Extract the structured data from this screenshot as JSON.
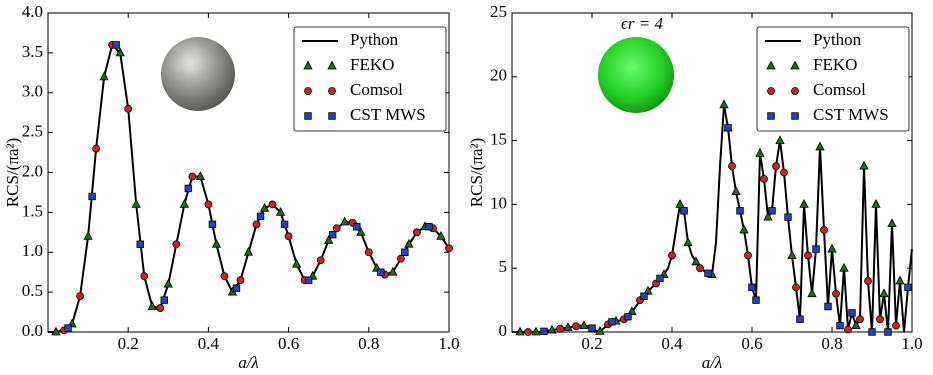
{
  "chart_data": [
    {
      "type": "line",
      "xlabel": "a/λ",
      "ylabel": "RCS/(πa²)",
      "xlim": [
        0,
        1.0
      ],
      "ylim": [
        0,
        4.0
      ],
      "xticks": [
        0.2,
        0.4,
        0.6,
        0.8,
        {
          "value": 1.0,
          "label": "1.0"
        }
      ],
      "yticks": [
        {
          "value": 0,
          "label": "0.0"
        },
        {
          "value": 0.5,
          "label": "0.5"
        },
        {
          "value": 1.0,
          "label": "1.0"
        },
        {
          "value": 1.5,
          "label": "1.5"
        },
        {
          "value": 2.0,
          "label": "2.0"
        },
        {
          "value": 2.5,
          "label": "2.5"
        },
        {
          "value": 3.0,
          "label": "3.0"
        },
        {
          "value": 3.5,
          "label": "3.5"
        },
        {
          "value": 4.0,
          "label": "4.0"
        }
      ],
      "legend": "upper right",
      "series": [
        {
          "name": "Python",
          "color": "#000000",
          "marker": "line",
          "x": [
            0,
            0.02,
            0.04,
            0.06,
            0.08,
            0.1,
            0.12,
            0.14,
            0.16,
            0.18,
            0.2,
            0.22,
            0.24,
            0.26,
            0.28,
            0.3,
            0.32,
            0.34,
            0.36,
            0.38,
            0.4,
            0.42,
            0.44,
            0.46,
            0.48,
            0.5,
            0.52,
            0.54,
            0.56,
            0.58,
            0.6,
            0.62,
            0.64,
            0.66,
            0.68,
            0.7,
            0.72,
            0.74,
            0.76,
            0.78,
            0.8,
            0.82,
            0.84,
            0.86,
            0.88,
            0.9,
            0.92,
            0.94,
            0.96,
            0.98,
            1.0
          ],
          "values": [
            0,
            0,
            0.02,
            0.1,
            0.45,
            1.2,
            2.3,
            3.2,
            3.6,
            3.5,
            2.8,
            1.6,
            0.7,
            0.32,
            0.3,
            0.6,
            1.1,
            1.6,
            1.95,
            1.95,
            1.6,
            1.1,
            0.7,
            0.5,
            0.65,
            1.0,
            1.35,
            1.55,
            1.6,
            1.5,
            1.2,
            0.85,
            0.65,
            0.7,
            0.9,
            1.15,
            1.3,
            1.38,
            1.37,
            1.25,
            1.0,
            0.8,
            0.72,
            0.75,
            0.92,
            1.1,
            1.25,
            1.32,
            1.3,
            1.2,
            1.05
          ]
        },
        {
          "name": "FEKO",
          "color": "#1e6b1e",
          "marker": "triangle",
          "x": [
            0.02,
            0.06,
            0.1,
            0.14,
            0.18,
            0.22,
            0.26,
            0.3,
            0.34,
            0.38,
            0.42,
            0.46,
            0.5,
            0.54,
            0.58,
            0.62,
            0.66,
            0.7,
            0.74,
            0.78,
            0.82,
            0.86,
            0.9,
            0.94,
            0.98
          ],
          "values": [
            0,
            0.1,
            1.2,
            3.2,
            3.5,
            1.6,
            0.32,
            0.6,
            1.6,
            1.95,
            1.1,
            0.5,
            1.0,
            1.55,
            1.5,
            0.85,
            0.7,
            1.15,
            1.38,
            1.25,
            0.8,
            0.75,
            1.1,
            1.32,
            1.2
          ]
        },
        {
          "name": "Comsol",
          "color": "#e41a1c",
          "marker": "circle",
          "x": [
            0.04,
            0.08,
            0.12,
            0.16,
            0.2,
            0.24,
            0.28,
            0.32,
            0.36,
            0.4,
            0.44,
            0.48,
            0.52,
            0.56,
            0.6,
            0.64,
            0.68,
            0.72,
            0.76,
            0.8,
            0.84,
            0.88,
            0.92,
            0.96,
            1.0
          ],
          "values": [
            0.02,
            0.45,
            2.3,
            3.6,
            2.8,
            0.7,
            0.3,
            1.1,
            1.95,
            1.6,
            0.7,
            0.65,
            1.35,
            1.6,
            1.2,
            0.65,
            0.9,
            1.3,
            1.37,
            1.0,
            0.72,
            0.92,
            1.25,
            1.3,
            1.05
          ]
        },
        {
          "name": "CST MWS",
          "color": "#1f3fd6",
          "marker": "square",
          "x": [
            0.05,
            0.11,
            0.17,
            0.23,
            0.29,
            0.35,
            0.41,
            0.47,
            0.53,
            0.59,
            0.65,
            0.71,
            0.77,
            0.83,
            0.89,
            0.95
          ],
          "values": [
            0.05,
            1.7,
            3.6,
            1.1,
            0.4,
            1.8,
            1.35,
            0.55,
            1.45,
            1.35,
            0.65,
            1.22,
            1.32,
            0.75,
            1.0,
            1.32
          ]
        }
      ]
    },
    {
      "type": "line",
      "xlabel": "a/λ",
      "ylabel": "RCS/(πa²)",
      "annotation": "ϵr = 4",
      "xlim": [
        0,
        1.0
      ],
      "ylim": [
        0,
        25
      ],
      "xticks": [
        0.2,
        0.4,
        0.6,
        0.8,
        {
          "value": 1.0,
          "label": "1.0"
        }
      ],
      "yticks": [
        0,
        5,
        10,
        15,
        20,
        25
      ],
      "legend": "upper right",
      "series": [
        {
          "name": "Python",
          "color": "#000000",
          "marker": "line",
          "x": [
            0,
            0.01,
            0.02,
            0.03,
            0.04,
            0.05,
            0.06,
            0.07,
            0.08,
            0.09,
            0.1,
            0.11,
            0.12,
            0.13,
            0.14,
            0.15,
            0.16,
            0.17,
            0.18,
            0.19,
            0.2,
            0.21,
            0.22,
            0.23,
            0.24,
            0.25,
            0.26,
            0.27,
            0.28,
            0.29,
            0.3,
            0.31,
            0.32,
            0.33,
            0.34,
            0.35,
            0.36,
            0.37,
            0.38,
            0.39,
            0.4,
            0.41,
            0.42,
            0.43,
            0.44,
            0.45,
            0.46,
            0.47,
            0.48,
            0.49,
            0.5,
            0.51,
            0.52,
            0.53,
            0.54,
            0.55,
            0.56,
            0.57,
            0.58,
            0.59,
            0.6,
            0.61,
            0.62,
            0.63,
            0.64,
            0.65,
            0.66,
            0.67,
            0.68,
            0.69,
            0.7,
            0.71,
            0.72,
            0.73,
            0.74,
            0.75,
            0.76,
            0.77,
            0.78,
            0.79,
            0.8,
            0.81,
            0.82,
            0.83,
            0.84,
            0.85,
            0.86,
            0.87,
            0.88,
            0.89,
            0.9,
            0.91,
            0.92,
            0.93,
            0.94,
            0.95,
            0.96,
            0.97,
            0.98,
            0.99,
            1.0
          ],
          "values": [
            0,
            0,
            0,
            0,
            0,
            0,
            0,
            0,
            0.05,
            0.1,
            0.15,
            0.2,
            0.25,
            0.3,
            0.35,
            0.4,
            0.45,
            0.5,
            0.5,
            0.45,
            0.3,
            0.1,
            0.05,
            0.3,
            0.6,
            0.8,
            0.85,
            0.9,
            1.0,
            1.2,
            1.6,
            2.0,
            2.5,
            2.8,
            3.2,
            3.5,
            3.8,
            4.2,
            4.5,
            5.0,
            6.0,
            8,
            10,
            9.5,
            7,
            6,
            5.5,
            5,
            4.8,
            4.6,
            4.5,
            7,
            13,
            17.8,
            16,
            13,
            11,
            9.5,
            8,
            6,
            3.5,
            2.5,
            14,
            12,
            9,
            9.5,
            13,
            15,
            12.5,
            9,
            6,
            3.5,
            1,
            10,
            6,
            3,
            6.5,
            14.5,
            8,
            2,
            6.5,
            3,
            0.5,
            5,
            0.2,
            1.5,
            0.5,
            1,
            13,
            4,
            0,
            10,
            1,
            3,
            0,
            8.5,
            0.5,
            4,
            0,
            3.5,
            6.5
          ]
        },
        {
          "name": "FEKO",
          "color": "#1e6b1e",
          "marker": "triangle",
          "x": [
            0.02,
            0.06,
            0.1,
            0.14,
            0.18,
            0.22,
            0.26,
            0.3,
            0.34,
            0.38,
            0.42,
            0.44,
            0.46,
            0.5,
            0.53,
            0.54,
            0.56,
            0.58,
            0.62,
            0.64,
            0.67,
            0.7,
            0.73,
            0.75,
            0.77,
            0.8,
            0.83,
            0.86,
            0.88,
            0.91,
            0.93,
            0.95,
            0.97
          ],
          "values": [
            0,
            0,
            0.15,
            0.35,
            0.5,
            0.05,
            0.85,
            1.6,
            3.2,
            4.5,
            10,
            7,
            5.5,
            4.5,
            17.8,
            16,
            11,
            8,
            14,
            9,
            15,
            6,
            10,
            3,
            14.5,
            6.5,
            5,
            0.5,
            13,
            10,
            3,
            8.5,
            4
          ]
        },
        {
          "name": "Comsol",
          "color": "#e41a1c",
          "marker": "circle",
          "x": [
            0.04,
            0.12,
            0.16,
            0.24,
            0.28,
            0.32,
            0.36,
            0.4,
            0.43,
            0.47,
            0.55,
            0.59,
            0.63,
            0.66,
            0.68,
            0.71,
            0.74,
            0.78,
            0.81,
            0.84,
            0.87,
            0.89,
            0.92,
            0.96
          ],
          "values": [
            0,
            0.25,
            0.45,
            0.6,
            1.0,
            2.5,
            3.8,
            6.0,
            9.5,
            5,
            13,
            6,
            12,
            13,
            12.5,
            3.5,
            6,
            8,
            3,
            0.2,
            1,
            4,
            1,
            0.5
          ]
        },
        {
          "name": "CST MWS",
          "color": "#1f3fd6",
          "marker": "square",
          "x": [
            0.08,
            0.2,
            0.25,
            0.29,
            0.33,
            0.37,
            0.43,
            0.49,
            0.54,
            0.57,
            0.6,
            0.61,
            0.65,
            0.69,
            0.72,
            0.76,
            0.79,
            0.82,
            0.85,
            0.9,
            0.94,
            0.99
          ],
          "values": [
            0.05,
            0.3,
            0.8,
            1.2,
            2.8,
            4.2,
            9.5,
            4.6,
            16,
            9.5,
            3.5,
            2.5,
            9.5,
            9,
            1,
            6.5,
            2,
            0.5,
            1.5,
            0,
            0,
            3.5
          ]
        }
      ]
    }
  ]
}
